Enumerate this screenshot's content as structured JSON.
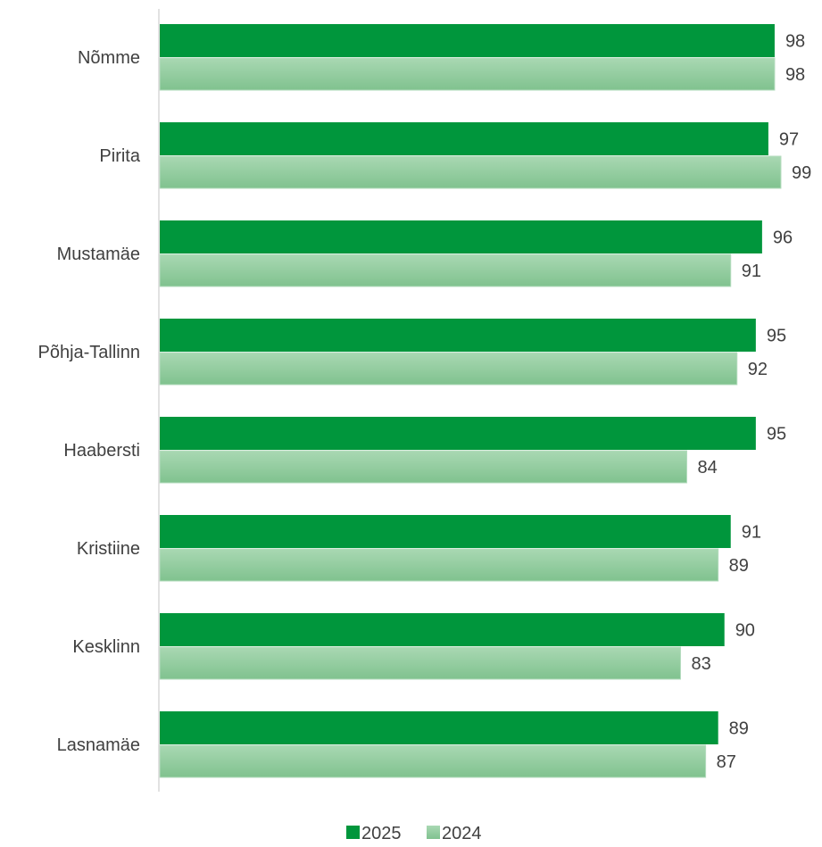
{
  "chart_data": {
    "type": "bar",
    "orientation": "horizontal",
    "categories": [
      "Nõmme",
      "Pirita",
      "Mustamäe",
      "Põhja-Tallinn",
      "Haabersti",
      "Kristiine",
      "Kesklinn",
      "Lasnamäe"
    ],
    "series": [
      {
        "name": "2025",
        "color": "#00963c",
        "values": [
          98,
          97,
          96,
          95,
          95,
          91,
          90,
          89
        ]
      },
      {
        "name": "2024",
        "color": "#8cc99b",
        "values": [
          98,
          99,
          91,
          92,
          84,
          89,
          83,
          87
        ]
      }
    ],
    "xlim": [
      0,
      100
    ],
    "grid": false,
    "legend_position": "bottom",
    "data_labels": true
  }
}
